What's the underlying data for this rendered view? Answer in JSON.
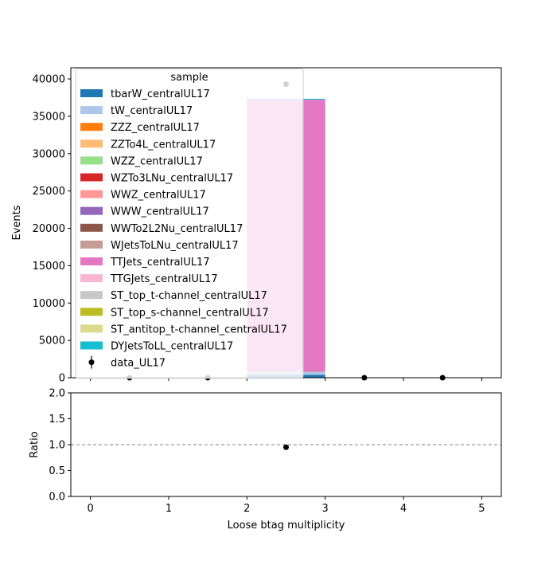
{
  "chart_data": [
    {
      "type": "bar",
      "stacked": true,
      "xlabel": "",
      "ylabel": "Events",
      "xlim": [
        -0.25,
        5.25
      ],
      "ylim": [
        0,
        41500
      ],
      "xticks": [
        0,
        1,
        2,
        3,
        4,
        5
      ],
      "yticks": [
        0,
        5000,
        10000,
        15000,
        20000,
        25000,
        30000,
        35000,
        40000
      ],
      "x_tick_labels_shown": false,
      "bins": [
        [
          0,
          1
        ],
        [
          1,
          2
        ],
        [
          2,
          3
        ],
        [
          3,
          4
        ],
        [
          4,
          5
        ]
      ],
      "legend_title": "sample",
      "legend_placement": "top-left",
      "series": [
        {
          "name": "tbarW_centralUL17",
          "color": "#1f77b4",
          "values": [
            0,
            0,
            400,
            0,
            0
          ]
        },
        {
          "name": "tW_centralUL17",
          "color": "#aec7e8",
          "values": [
            0,
            0,
            380,
            0,
            0
          ]
        },
        {
          "name": "ZZZ_centralUL17",
          "color": "#ff7f0e",
          "values": [
            0,
            0,
            0,
            0,
            0
          ]
        },
        {
          "name": "ZZTo4L_centralUL17",
          "color": "#ffbb78",
          "values": [
            0,
            0,
            5,
            0,
            0
          ]
        },
        {
          "name": "WZZ_centralUL17",
          "color": "#98df8a",
          "values": [
            0,
            0,
            0,
            0,
            0
          ]
        },
        {
          "name": "WZTo3LNu_centralUL17",
          "color": "#d62728",
          "values": [
            0,
            0,
            10,
            0,
            0
          ]
        },
        {
          "name": "WWZ_centralUL17",
          "color": "#ff9896",
          "values": [
            0,
            0,
            0,
            0,
            0
          ]
        },
        {
          "name": "WWW_centralUL17",
          "color": "#9467bd",
          "values": [
            0,
            0,
            0,
            0,
            0
          ]
        },
        {
          "name": "WWTo2L2Nu_centralUL17",
          "color": "#8c564b",
          "values": [
            0,
            0,
            20,
            0,
            0
          ]
        },
        {
          "name": "WJetsToLNu_centralUL17",
          "color": "#c49c94",
          "values": [
            0,
            0,
            10,
            0,
            0
          ]
        },
        {
          "name": "TTJets_centralUL17",
          "color": "#e377c2",
          "values": [
            0,
            0,
            36400,
            0,
            0
          ]
        },
        {
          "name": "TTGJets_centralUL17",
          "color": "#f7b6d2",
          "values": [
            0,
            0,
            0,
            0,
            0
          ]
        },
        {
          "name": "ST_top_t-channel_centralUL17",
          "color": "#c7c7c7",
          "values": [
            0,
            0,
            0,
            0,
            0
          ]
        },
        {
          "name": "ST_top_s-channel_centralUL17",
          "color": "#bcbd22",
          "values": [
            0,
            0,
            0,
            0,
            0
          ]
        },
        {
          "name": "ST_antitop_t-channel_centralUL17",
          "color": "#dbdb8d",
          "values": [
            0,
            0,
            0,
            0,
            0
          ]
        },
        {
          "name": "DYJetsToLL_centralUL17",
          "color": "#17becf",
          "values": [
            0,
            0,
            120,
            0,
            0
          ]
        }
      ],
      "data_series": {
        "name": "data_UL17",
        "color": "#000000",
        "x": [
          0.5,
          1.5,
          2.5,
          3.5,
          4.5
        ],
        "y": [
          0,
          0,
          39300,
          0,
          0
        ]
      },
      "grid": false
    },
    {
      "type": "scatter",
      "xlabel": "Loose btag multiplicity",
      "ylabel": "Ratio",
      "xlim": [
        -0.25,
        5.25
      ],
      "ylim": [
        0,
        2
      ],
      "xticks": [
        0,
        1,
        2,
        3,
        4,
        5
      ],
      "yticks": [
        0.0,
        0.5,
        1.0,
        1.5,
        2.0
      ],
      "reference_line": 1.0,
      "points": [
        {
          "x": 2.5,
          "y": 0.95
        }
      ],
      "grid": false
    }
  ]
}
